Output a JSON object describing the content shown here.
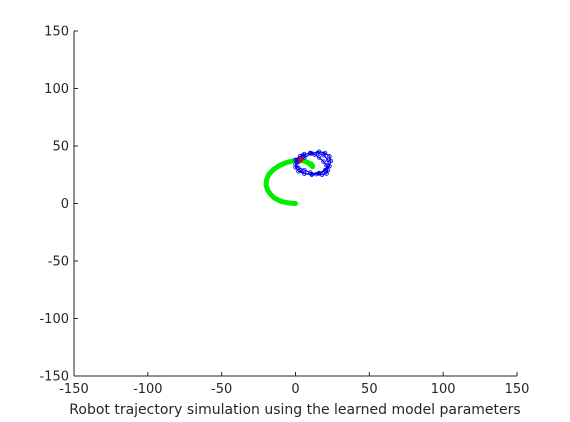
{
  "chart_data": {
    "type": "line",
    "title": "",
    "xlabel": "Robot trajectory simulation using the learned model parameters",
    "ylabel": "",
    "xlim": [
      -150,
      150
    ],
    "ylim": [
      -150,
      150
    ],
    "xticks": [
      "-150",
      "-100",
      "-50",
      "0",
      "50",
      "100",
      "150"
    ],
    "yticks": [
      "-150",
      "-100",
      "-50",
      "0",
      "50",
      "100",
      "150"
    ],
    "grid": false,
    "legend": "none",
    "series": [
      {
        "color": "#00ee00",
        "style": "thick-line",
        "x": [
          0,
          -5,
          -10,
          -14,
          -17,
          -19,
          -20,
          -19.5,
          -18,
          -15,
          -11,
          -6.5,
          -2,
          2.5,
          6,
          8.5,
          10.5,
          11.5,
          11.5,
          10.5,
          9,
          7.5
        ],
        "y": [
          0,
          0.5,
          2,
          4.5,
          8,
          12,
          16.5,
          21,
          25.5,
          29.5,
          33,
          35.5,
          37,
          37.5,
          37,
          35.5,
          33.5,
          32,
          33,
          34.5,
          35,
          36
        ]
      },
      {
        "color": "#0000ee",
        "style": "loops",
        "x": [
          0,
          3,
          6,
          10,
          13,
          16,
          19,
          21,
          22,
          21,
          18,
          14,
          10,
          6,
          2,
          0,
          1,
          5,
          10,
          15,
          19,
          22,
          22,
          20,
          16,
          11,
          6,
          2,
          0,
          2,
          6,
          11,
          16,
          20,
          23,
          24,
          23,
          20,
          16,
          11,
          6,
          3
        ],
        "y": [
          38,
          41,
          43,
          43.5,
          42.5,
          40,
          36.5,
          33,
          29,
          26,
          25,
          25.5,
          27,
          29,
          31,
          34,
          38,
          42,
          44,
          44,
          42,
          38,
          33,
          29,
          26.5,
          25.5,
          26,
          28,
          31.5,
          36,
          40,
          43.5,
          45,
          44,
          41,
          37,
          32.5,
          28.5,
          26,
          25,
          26,
          29
        ]
      },
      {
        "color": "#ee0000",
        "style": "marker",
        "x": [
          3.5
        ],
        "y": [
          38
        ]
      }
    ]
  }
}
